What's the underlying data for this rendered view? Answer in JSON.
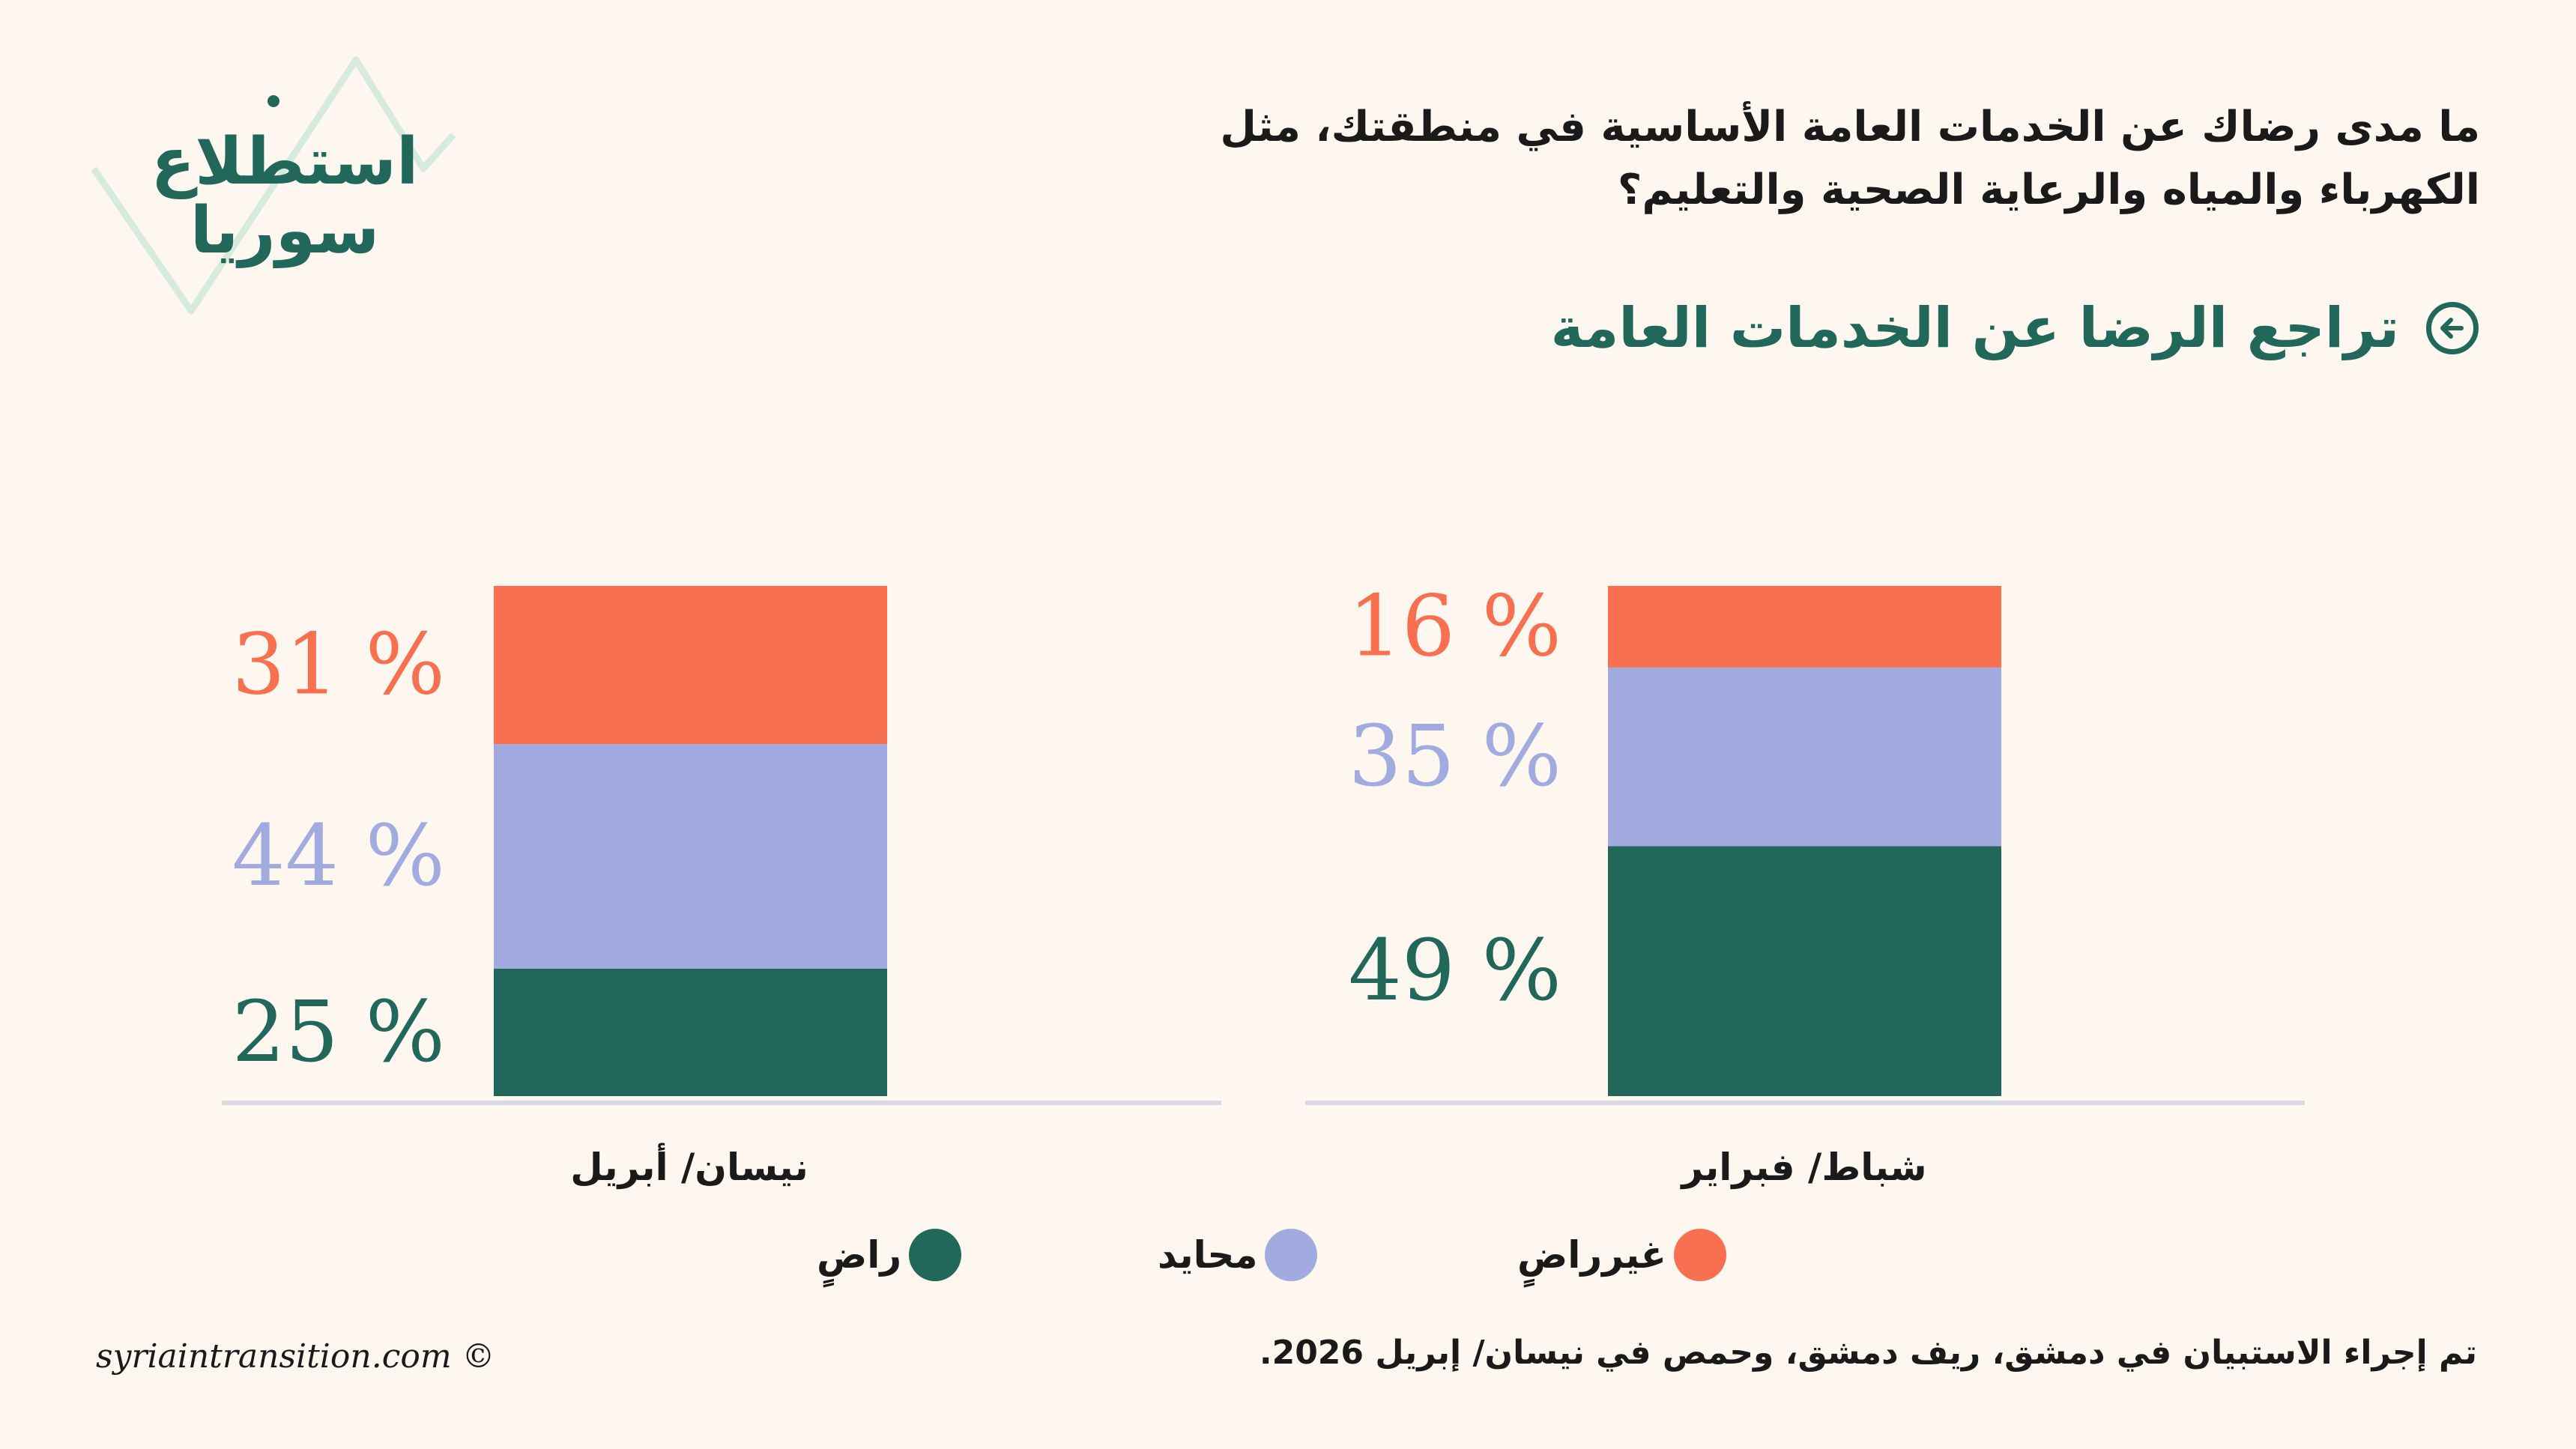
{
  "logo": {
    "line1": "استطلاع",
    "line2": "سوريا"
  },
  "question": "ما مدى رضاك عن الخدمات العامة الأساسية في منطقتك، مثل الكهرباء والمياه والرعاية الصحية والتعليم؟",
  "subtitle": "تراجع الرضا عن الخدمات العامة",
  "colors": {
    "satisfied": "#21675a",
    "neutral": "#a1abe0",
    "unsatisfied": "#f97050",
    "accent": "#21675a"
  },
  "chart_data": {
    "type": "bar",
    "stacked": true,
    "categories": [
      "نيسان/ أبريل",
      "شباط/ فبراير"
    ],
    "series": [
      {
        "name": "راضٍ",
        "values": [
          25,
          49
        ]
      },
      {
        "name": "محايد",
        "values": [
          44,
          35
        ]
      },
      {
        "name": "غيرراضٍ",
        "values": [
          31,
          16
        ]
      }
    ],
    "unit": "%",
    "ylim": [
      0,
      100
    ],
    "grid": false,
    "legend_position": "bottom"
  },
  "legend": [
    {
      "label": "راضٍ",
      "color": "#21675a"
    },
    {
      "label": "محايد",
      "color": "#a1abe0"
    },
    {
      "label": "غيرراضٍ",
      "color": "#f97050"
    }
  ],
  "note": "تم إجراء الاستبيان في دمشق، ريف دمشق، وحمص في نيسان/ إبريل 2026.",
  "copyright": "syriaintransition.com ©"
}
